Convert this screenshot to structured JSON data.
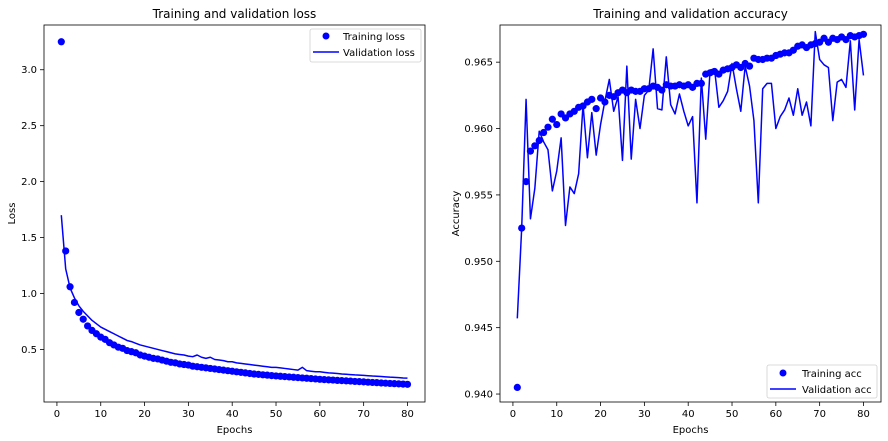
{
  "chart_data": [
    {
      "type": "line",
      "title": "Training and validation loss",
      "xlabel": "Epochs",
      "ylabel": "Loss",
      "xlim": [
        -2.95,
        84.0
      ],
      "ylim": [
        0.03,
        3.4
      ],
      "xticks": [
        0,
        10,
        20,
        30,
        40,
        50,
        60,
        70,
        80
      ],
      "yticks": [
        0.5,
        1.0,
        1.5,
        2.0,
        2.5,
        3.0
      ],
      "ytick_format": 1,
      "grid": false,
      "legend_position": "upper right",
      "series": [
        {
          "name": "Training loss",
          "style": "markers",
          "color": "#0000ff",
          "x": [
            1,
            2,
            3,
            4,
            5,
            6,
            7,
            8,
            9,
            10,
            11,
            12,
            13,
            14,
            15,
            16,
            17,
            18,
            19,
            20,
            21,
            22,
            23,
            24,
            25,
            26,
            27,
            28,
            29,
            30,
            31,
            32,
            33,
            34,
            35,
            36,
            37,
            38,
            39,
            40,
            41,
            42,
            43,
            44,
            45,
            46,
            47,
            48,
            49,
            50,
            51,
            52,
            53,
            54,
            55,
            56,
            57,
            58,
            59,
            60,
            61,
            62,
            63,
            64,
            65,
            66,
            67,
            68,
            69,
            70,
            71,
            72,
            73,
            74,
            75,
            76,
            77,
            78,
            79,
            80
          ],
          "y": [
            3.25,
            1.38,
            1.06,
            0.92,
            0.83,
            0.77,
            0.71,
            0.67,
            0.64,
            0.61,
            0.59,
            0.56,
            0.54,
            0.52,
            0.51,
            0.49,
            0.48,
            0.47,
            0.45,
            0.44,
            0.43,
            0.42,
            0.415,
            0.405,
            0.395,
            0.385,
            0.38,
            0.37,
            0.365,
            0.36,
            0.35,
            0.345,
            0.34,
            0.335,
            0.33,
            0.325,
            0.32,
            0.315,
            0.31,
            0.305,
            0.3,
            0.295,
            0.29,
            0.285,
            0.28,
            0.277,
            0.273,
            0.27,
            0.266,
            0.263,
            0.26,
            0.257,
            0.254,
            0.251,
            0.248,
            0.245,
            0.242,
            0.239,
            0.236,
            0.233,
            0.23,
            0.228,
            0.226,
            0.223,
            0.221,
            0.219,
            0.217,
            0.214,
            0.212,
            0.21,
            0.207,
            0.205,
            0.203,
            0.2,
            0.198,
            0.196,
            0.194,
            0.192,
            0.19,
            0.188
          ]
        },
        {
          "name": "Validation loss",
          "style": "line",
          "color": "#0000ff",
          "x": [
            1,
            2,
            3,
            4,
            5,
            6,
            7,
            8,
            9,
            10,
            11,
            12,
            13,
            14,
            15,
            16,
            17,
            18,
            19,
            20,
            21,
            22,
            23,
            24,
            25,
            26,
            27,
            28,
            29,
            30,
            31,
            32,
            33,
            34,
            35,
            36,
            37,
            38,
            39,
            40,
            41,
            42,
            43,
            44,
            45,
            46,
            47,
            48,
            49,
            50,
            51,
            52,
            53,
            54,
            55,
            56,
            57,
            58,
            59,
            60,
            61,
            62,
            63,
            64,
            65,
            66,
            67,
            68,
            69,
            70,
            71,
            72,
            73,
            74,
            75,
            76,
            77,
            78,
            79,
            80
          ],
          "y": [
            1.7,
            1.22,
            1.05,
            0.96,
            0.89,
            0.84,
            0.8,
            0.76,
            0.73,
            0.7,
            0.68,
            0.66,
            0.64,
            0.62,
            0.6,
            0.58,
            0.57,
            0.555,
            0.54,
            0.53,
            0.52,
            0.51,
            0.5,
            0.49,
            0.48,
            0.47,
            0.46,
            0.455,
            0.45,
            0.44,
            0.435,
            0.45,
            0.43,
            0.42,
            0.43,
            0.41,
            0.405,
            0.4,
            0.39,
            0.39,
            0.38,
            0.375,
            0.37,
            0.365,
            0.36,
            0.355,
            0.35,
            0.345,
            0.34,
            0.34,
            0.335,
            0.33,
            0.325,
            0.32,
            0.315,
            0.34,
            0.31,
            0.305,
            0.3,
            0.3,
            0.295,
            0.29,
            0.288,
            0.285,
            0.28,
            0.278,
            0.275,
            0.272,
            0.27,
            0.268,
            0.265,
            0.262,
            0.26,
            0.258,
            0.255,
            0.252,
            0.25,
            0.248,
            0.245,
            0.243
          ]
        }
      ]
    },
    {
      "type": "line",
      "title": "Training and validation accuracy",
      "xlabel": "Epochs",
      "ylabel": "Accuracy",
      "xlim": [
        -2.95,
        84.0
      ],
      "ylim": [
        0.9394,
        0.9678
      ],
      "xticks": [
        0,
        10,
        20,
        30,
        40,
        50,
        60,
        70,
        80
      ],
      "yticks": [
        0.94,
        0.945,
        0.95,
        0.955,
        0.96,
        0.965
      ],
      "ytick_format": 3,
      "grid": false,
      "legend_position": "lower right",
      "series": [
        {
          "name": "Training acc",
          "style": "markers",
          "color": "#0000ff",
          "x": [
            1,
            2,
            3,
            4,
            5,
            6,
            7,
            8,
            9,
            10,
            11,
            12,
            13,
            14,
            15,
            16,
            17,
            18,
            19,
            20,
            21,
            22,
            23,
            24,
            25,
            26,
            27,
            28,
            29,
            30,
            31,
            32,
            33,
            34,
            35,
            36,
            37,
            38,
            39,
            40,
            41,
            42,
            43,
            44,
            45,
            46,
            47,
            48,
            49,
            50,
            51,
            52,
            53,
            54,
            55,
            56,
            57,
            58,
            59,
            60,
            61,
            62,
            63,
            64,
            65,
            66,
            67,
            68,
            69,
            70,
            71,
            72,
            73,
            74,
            75,
            76,
            77,
            78,
            79,
            80
          ],
          "y": [
            0.9405,
            0.9525,
            0.956,
            0.9583,
            0.9587,
            0.9591,
            0.9597,
            0.9601,
            0.9607,
            0.9603,
            0.9611,
            0.9608,
            0.9611,
            0.9613,
            0.9616,
            0.9617,
            0.962,
            0.9622,
            0.9615,
            0.9623,
            0.962,
            0.9625,
            0.9624,
            0.9627,
            0.9629,
            0.9627,
            0.9629,
            0.9628,
            0.9628,
            0.963,
            0.963,
            0.9632,
            0.9631,
            0.9629,
            0.9633,
            0.9632,
            0.9632,
            0.9633,
            0.9632,
            0.9633,
            0.9631,
            0.9634,
            0.9634,
            0.9641,
            0.9642,
            0.9643,
            0.9641,
            0.9644,
            0.9645,
            0.9646,
            0.9648,
            0.9646,
            0.9649,
            0.9647,
            0.9653,
            0.9652,
            0.9652,
            0.9653,
            0.9653,
            0.9655,
            0.9656,
            0.9657,
            0.9657,
            0.9659,
            0.9662,
            0.9663,
            0.9661,
            0.9663,
            0.9664,
            0.9665,
            0.9668,
            0.9665,
            0.9668,
            0.9667,
            0.9669,
            0.9667,
            0.967,
            0.9669,
            0.967,
            0.9671
          ]
        },
        {
          "name": "Validation acc",
          "style": "line",
          "color": "#0000ff",
          "x": [
            1,
            2,
            3,
            4,
            5,
            6,
            7,
            8,
            9,
            10,
            11,
            12,
            13,
            14,
            15,
            16,
            17,
            18,
            19,
            20,
            21,
            22,
            23,
            24,
            25,
            26,
            27,
            28,
            29,
            30,
            31,
            32,
            33,
            34,
            35,
            36,
            37,
            38,
            39,
            40,
            41,
            42,
            43,
            44,
            45,
            46,
            47,
            48,
            49,
            50,
            51,
            52,
            53,
            54,
            55,
            56,
            57,
            58,
            59,
            60,
            61,
            62,
            63,
            64,
            65,
            66,
            67,
            68,
            69,
            70,
            71,
            72,
            73,
            74,
            75,
            76,
            77,
            78,
            79,
            80
          ],
          "y": [
            0.9457,
            0.9525,
            0.9622,
            0.9532,
            0.9555,
            0.9598,
            0.959,
            0.9584,
            0.9553,
            0.9568,
            0.9593,
            0.9527,
            0.9556,
            0.9551,
            0.9566,
            0.9618,
            0.9578,
            0.9612,
            0.958,
            0.9603,
            0.9621,
            0.9637,
            0.9613,
            0.9624,
            0.9576,
            0.9647,
            0.9577,
            0.9622,
            0.96,
            0.9625,
            0.9629,
            0.966,
            0.9615,
            0.9614,
            0.9654,
            0.9618,
            0.9611,
            0.9626,
            0.9613,
            0.9602,
            0.9609,
            0.9544,
            0.9638,
            0.9592,
            0.9644,
            0.9645,
            0.9616,
            0.9621,
            0.9628,
            0.9649,
            0.963,
            0.9613,
            0.9647,
            0.9632,
            0.9606,
            0.9544,
            0.963,
            0.9634,
            0.9634,
            0.96,
            0.9609,
            0.9614,
            0.9623,
            0.961,
            0.963,
            0.961,
            0.962,
            0.9602,
            0.9673,
            0.9652,
            0.9648,
            0.9646,
            0.9606,
            0.9635,
            0.9637,
            0.9631,
            0.9666,
            0.9614,
            0.9667,
            0.964
          ]
        }
      ]
    }
  ]
}
